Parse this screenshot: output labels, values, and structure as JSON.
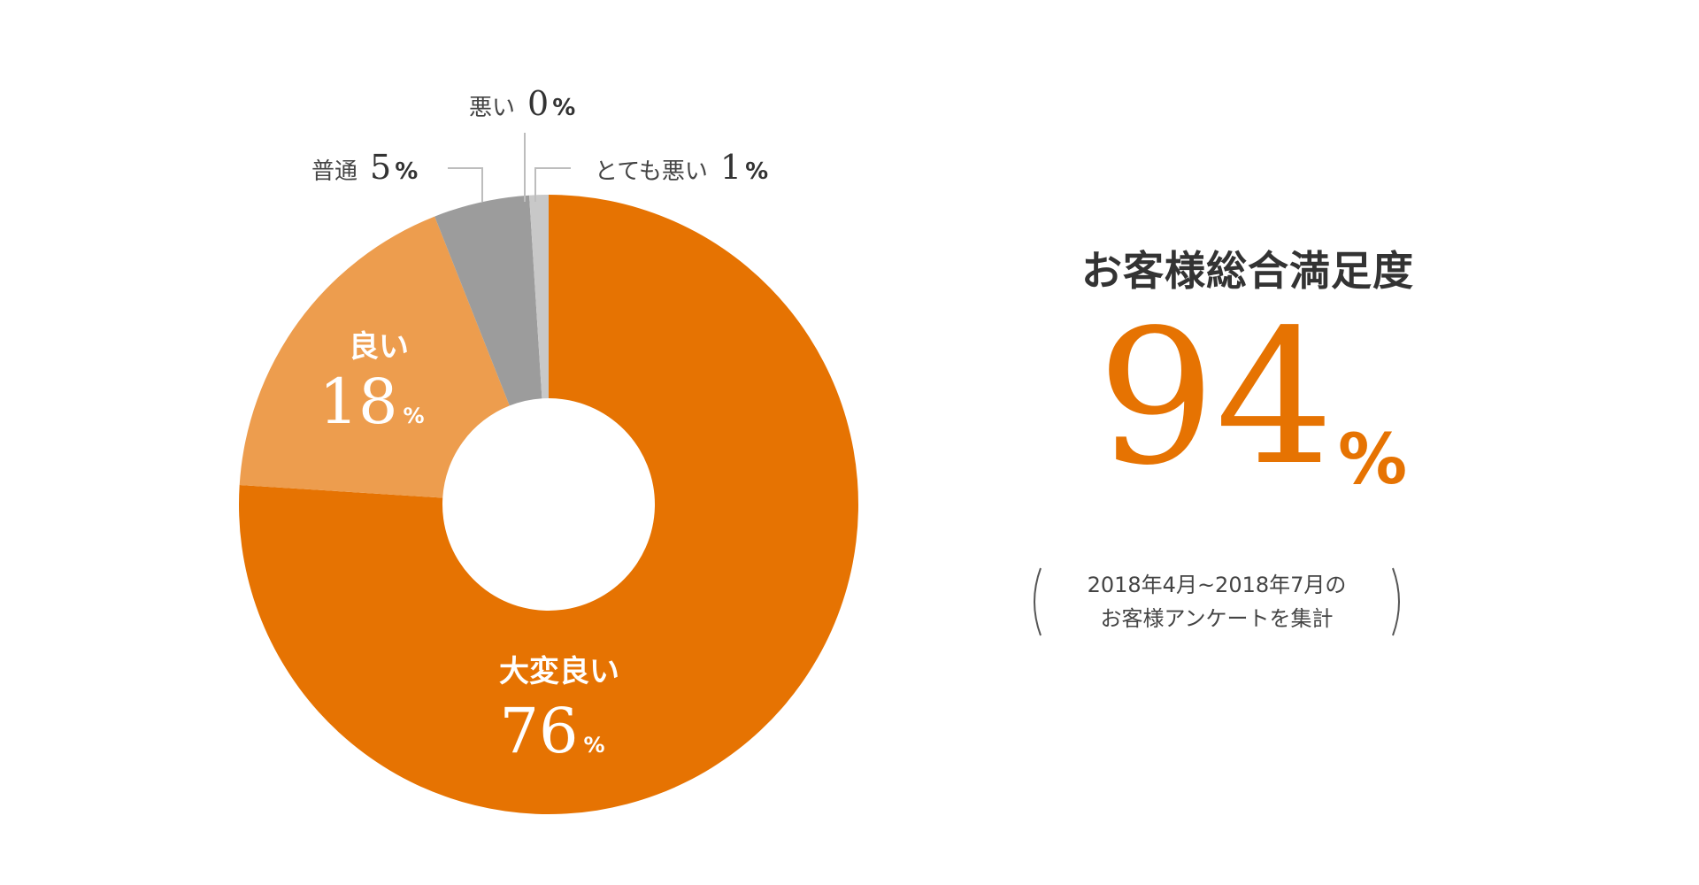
{
  "chart_data": {
    "type": "pie",
    "variant": "donut",
    "categories": [
      "大変良い",
      "良い",
      "普通",
      "悪い",
      "とても悪い"
    ],
    "values": [
      76,
      18,
      5,
      0,
      1
    ],
    "value_labels": [
      "76",
      "18",
      "5",
      "0",
      "1"
    ],
    "percent_sign": "%",
    "colors": [
      "#e67302",
      "#ed9d4e",
      "#9c9c9c",
      "#b4b4b4",
      "#c8c8c8"
    ],
    "label_placement": [
      "inside",
      "inside",
      "outside-top-left",
      "outside-top",
      "outside-top-right"
    ]
  },
  "summary": {
    "title": "お客様総合満足度",
    "value": "94",
    "percent_sign": "%",
    "note_lines": [
      "2018年4月~2018年7月の",
      "お客様アンケートを集計"
    ]
  },
  "colors": {
    "accent": "#e67302",
    "text": "#333333",
    "leader_line": "#bdbdbd"
  }
}
